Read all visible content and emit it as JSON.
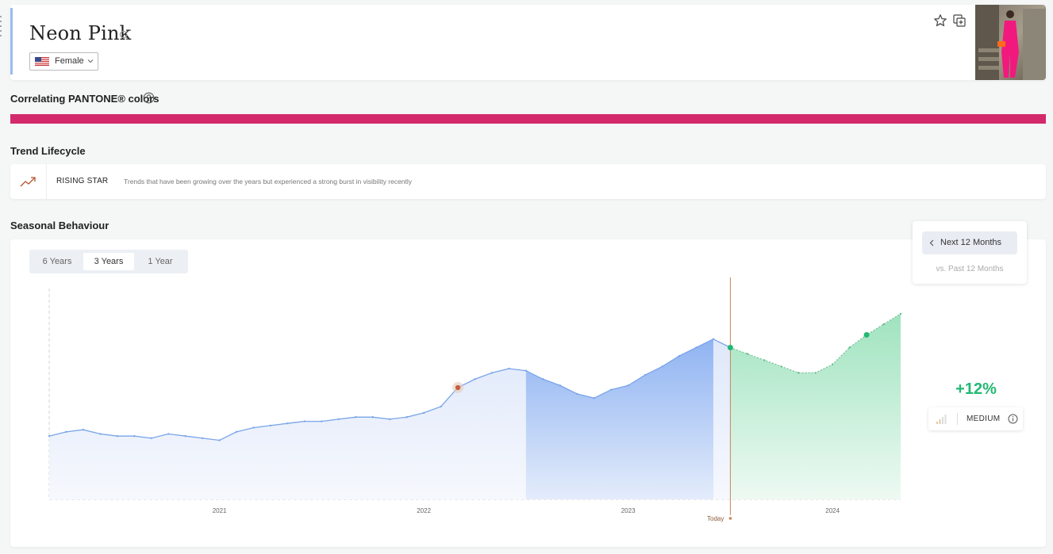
{
  "header": {
    "title": "Neon Pink",
    "gender": "Female"
  },
  "pantone": {
    "title": "Correlating PANTONE® colors",
    "color": "#d32a6b"
  },
  "lifecycle": {
    "section_title": "Trend Lifecycle",
    "name": "RISING STAR",
    "description": "Trends that have been growing over the years but experienced a strong burst in visibility recently"
  },
  "seasonal": {
    "section_title": "Seasonal Behaviour",
    "tabs": [
      {
        "label": "6 Years",
        "active": false
      },
      {
        "label": "3 Years",
        "active": true
      },
      {
        "label": "1 Year",
        "active": false
      }
    ],
    "forecast_toggle": {
      "selected": "Next 12 Months",
      "alternative": "vs. Past 12 Months"
    },
    "change": "+12%",
    "confidence": "MEDIUM"
  },
  "colors": {
    "accent_blue": "#9bbcf3",
    "history_line": "#7aa5e8",
    "forecast_green": "#22b873",
    "today_line": "#c9865a"
  },
  "chart_data": {
    "type": "area",
    "x_tick_labels": [
      "2021",
      "2022",
      "2023",
      "2024"
    ],
    "today_label": "Today",
    "x_range": [
      "2020-03",
      "2024-05"
    ],
    "highlighted_period": [
      "2022-07",
      "2023-06"
    ],
    "series": [
      {
        "segment": "history",
        "x": [
          "2020-03",
          "2020-04",
          "2020-05",
          "2020-06",
          "2020-07",
          "2020-08",
          "2020-09",
          "2020-10",
          "2020-11",
          "2020-12",
          "2021-01",
          "2021-02",
          "2021-03",
          "2021-04",
          "2021-05",
          "2021-06",
          "2021-07",
          "2021-08",
          "2021-09",
          "2021-10",
          "2021-11",
          "2021-12",
          "2022-01",
          "2022-02",
          "2022-03",
          "2022-04",
          "2022-05",
          "2022-06",
          "2022-07",
          "2022-08",
          "2022-09",
          "2022-10",
          "2022-11",
          "2022-12",
          "2023-01",
          "2023-02",
          "2023-03",
          "2023-04",
          "2023-05",
          "2023-06",
          "2023-07"
        ],
        "values": [
          30,
          32,
          33,
          31,
          30,
          30,
          29,
          31,
          30,
          29,
          28,
          32,
          34,
          35,
          36,
          37,
          37,
          38,
          39,
          39,
          38,
          39,
          41,
          44,
          53,
          57,
          60,
          62,
          61,
          57,
          54,
          50,
          48,
          52,
          54,
          59,
          63,
          68,
          72,
          76,
          72
        ]
      },
      {
        "segment": "forecast",
        "x": [
          "2023-07",
          "2023-08",
          "2023-09",
          "2023-10",
          "2023-11",
          "2023-12",
          "2024-01",
          "2024-02",
          "2024-03",
          "2024-04",
          "2024-05"
        ],
        "values": [
          72,
          69,
          66,
          63,
          60,
          60,
          64,
          72,
          78,
          83,
          88
        ]
      }
    ]
  }
}
